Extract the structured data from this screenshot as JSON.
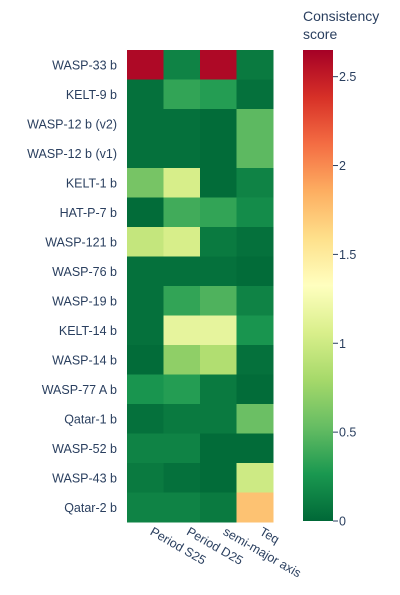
{
  "chart_data": {
    "type": "heatmap",
    "title": "",
    "xlabel": "",
    "ylabel": "",
    "x_categories": [
      "Period S25",
      "Period D25",
      "semi-major axis",
      "Teq"
    ],
    "y_categories": [
      "WASP-33 b",
      "KELT-9 b",
      "WASP-12 b (v2)",
      "WASP-12 b (v1)",
      "KELT-1 b",
      "HAT-P-7 b",
      "WASP-121 b",
      "WASP-76 b",
      "WASP-19 b",
      "KELT-14 b",
      "WASP-14 b",
      "WASP-77 A b",
      "Qatar-1 b",
      "WASP-52 b",
      "WASP-43 b",
      "Qatar-2 b"
    ],
    "z": [
      [
        2.6,
        0.15,
        2.6,
        0.1
      ],
      [
        0.05,
        0.35,
        0.3,
        0.05
      ],
      [
        0.05,
        0.05,
        0.02,
        0.5
      ],
      [
        0.05,
        0.05,
        0.02,
        0.5
      ],
      [
        0.6,
        1.05,
        0.02,
        0.15
      ],
      [
        0.02,
        0.4,
        0.35,
        0.2
      ],
      [
        0.95,
        1.05,
        0.1,
        0.05
      ],
      [
        0.05,
        0.05,
        0.05,
        0.02
      ],
      [
        0.05,
        0.35,
        0.45,
        0.15
      ],
      [
        0.05,
        1.15,
        1.15,
        0.25
      ],
      [
        0.02,
        0.7,
        0.85,
        0.05
      ],
      [
        0.25,
        0.3,
        0.1,
        0.02
      ],
      [
        0.05,
        0.1,
        0.1,
        0.55
      ],
      [
        0.15,
        0.15,
        0.02,
        0.02
      ],
      [
        0.1,
        0.05,
        0.02,
        1.0
      ],
      [
        0.15,
        0.15,
        0.1,
        1.75
      ]
    ],
    "zlim": [
      0,
      2.65
    ],
    "colorbar": {
      "title_line1": "Consistency",
      "title_line2": "score",
      "tick_values": [
        0,
        0.5,
        1,
        1.5,
        2,
        2.5
      ],
      "tick_labels": [
        "0",
        "0.5",
        "1",
        "1.5",
        "2",
        "2.5"
      ]
    },
    "colorscale": [
      "#006837",
      "#1a9850",
      "#66bd63",
      "#a6d96a",
      "#d9ef8b",
      "#ffffbf",
      "#fee08b",
      "#fdae61",
      "#f46d43",
      "#d73027",
      "#a50026"
    ]
  }
}
